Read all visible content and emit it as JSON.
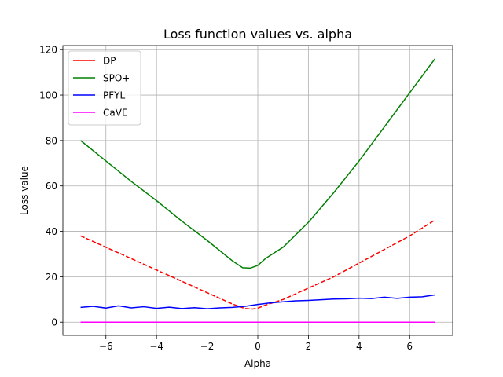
{
  "chart_data": {
    "type": "line",
    "title": "Loss function values vs. alpha",
    "xlabel": "Alpha",
    "ylabel": "Loss value",
    "xlim": [
      -7.7,
      7.7
    ],
    "ylim": [
      -5.8,
      121.8
    ],
    "xticks": [
      -6,
      -4,
      -2,
      0,
      2,
      4,
      6
    ],
    "yticks": [
      0,
      20,
      40,
      60,
      80,
      100,
      120
    ],
    "grid": true,
    "legend_position": "top-left",
    "series": [
      {
        "name": "DP",
        "color": "#ff0000",
        "dash": "dashed",
        "x": [
          -7,
          -6,
          -5,
          -4,
          -3,
          -2,
          -1,
          -0.5,
          -0.2,
          0,
          0.3,
          1,
          2,
          3,
          4,
          5,
          6,
          7
        ],
        "y": [
          38,
          33,
          28,
          23,
          18,
          13,
          8,
          6,
          5.8,
          6.2,
          7.5,
          10,
          15,
          20,
          26,
          32,
          38,
          45
        ]
      },
      {
        "name": "SPO+",
        "color": "#008000",
        "dash": "solid",
        "x": [
          -7,
          -6,
          -5,
          -4,
          -3,
          -2,
          -1,
          -0.6,
          -0.3,
          0,
          0.3,
          1,
          2,
          3,
          4,
          5,
          6,
          7
        ],
        "y": [
          80,
          71,
          62,
          53.5,
          44.5,
          36,
          27,
          24,
          23.8,
          25,
          28,
          33,
          44,
          57,
          71,
          86,
          101,
          116
        ]
      },
      {
        "name": "PFYL",
        "color": "#0000ff",
        "dash": "solid",
        "x": [
          -7,
          -6.5,
          -6,
          -5.5,
          -5,
          -4.5,
          -4,
          -3.5,
          -3,
          -2.5,
          -2,
          -1.5,
          -1,
          -0.5,
          0,
          0.5,
          1,
          1.5,
          2,
          2.5,
          3,
          3.5,
          4,
          4.5,
          5,
          5.5,
          6,
          6.5,
          7
        ],
        "y": [
          6.5,
          7,
          6.2,
          7.2,
          6.3,
          6.8,
          6.1,
          6.6,
          6,
          6.4,
          5.9,
          6.3,
          6.5,
          7,
          7.8,
          8.5,
          9,
          9.4,
          9.6,
          9.9,
          10.2,
          10.3,
          10.6,
          10.4,
          11,
          10.5,
          11,
          11.2,
          12
        ]
      },
      {
        "name": "CaVE",
        "color": "#ff00ff",
        "dash": "solid",
        "x": [
          -7,
          -5,
          -3,
          -1,
          0,
          1,
          3,
          5,
          7
        ],
        "y": [
          0,
          0,
          0,
          0,
          0,
          0,
          0,
          0,
          0
        ]
      }
    ]
  }
}
